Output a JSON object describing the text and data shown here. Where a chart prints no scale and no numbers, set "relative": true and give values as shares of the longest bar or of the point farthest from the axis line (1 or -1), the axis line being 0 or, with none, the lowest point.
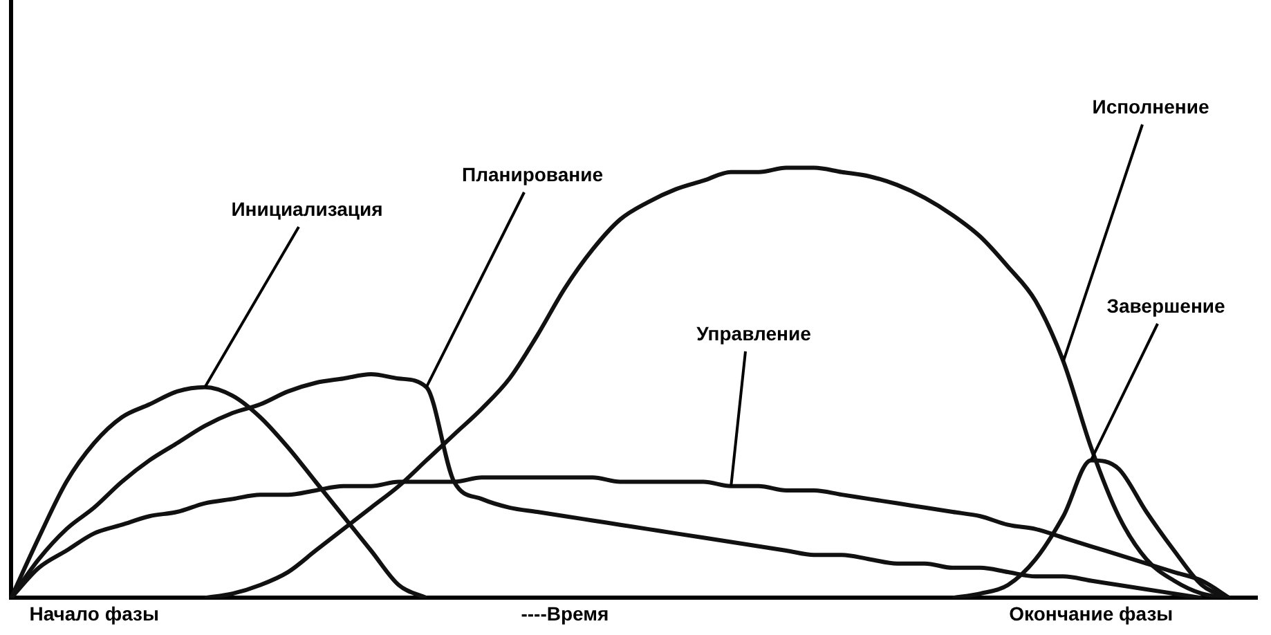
{
  "chart_data": {
    "type": "line",
    "relative": true,
    "grid": false,
    "legend": false,
    "marker": "none",
    "line_style": "solid",
    "categories": [
      null,
      null,
      null,
      "Начало фазы",
      null,
      null,
      null,
      null,
      null,
      null,
      null,
      null,
      null,
      null,
      null,
      null,
      null,
      null,
      null,
      null,
      "----Время",
      null,
      null,
      null,
      null,
      null,
      null,
      null,
      null,
      null,
      null,
      null,
      null,
      null,
      null,
      null,
      null,
      null,
      null,
      "Окончание фазы",
      null,
      null,
      null,
      null,
      null,
      null
    ],
    "series": [
      {
        "name": "Инициализация",
        "color": "#111111",
        "values": [
          0,
          0.14,
          0.27,
          0.36,
          0.42,
          0.45,
          0.48,
          0.49,
          0.47,
          0.42,
          0.35,
          0.27,
          0.19,
          0.11,
          0.03,
          0,
          null,
          null,
          null,
          null,
          null,
          null,
          null,
          null,
          null,
          null,
          null,
          null,
          null,
          null,
          null,
          null,
          null,
          null,
          null,
          null,
          null,
          null,
          null,
          null,
          null,
          null,
          null,
          null,
          null,
          null
        ]
      },
      {
        "name": "Планирование",
        "color": "#111111",
        "values": [
          0,
          0.09,
          0.16,
          0.21,
          0.27,
          0.32,
          0.36,
          0.4,
          0.43,
          0.45,
          0.48,
          0.5,
          0.51,
          0.52,
          0.51,
          0.49,
          0.27,
          0.23,
          0.21,
          0.2,
          0.19,
          0.18,
          0.17,
          0.16,
          0.15,
          0.14,
          0.13,
          0.12,
          0.11,
          0.1,
          0.1,
          0.09,
          0.08,
          0.08,
          0.07,
          0.07,
          0.06,
          0.05,
          0.05,
          0.04,
          0.03,
          0.02,
          0.01,
          0,
          null,
          null
        ]
      },
      {
        "name": "Исполнение",
        "color": "#111111",
        "values": [
          null,
          null,
          null,
          null,
          null,
          null,
          null,
          0,
          0.01,
          0.03,
          0.06,
          0.11,
          0.16,
          0.21,
          0.26,
          0.32,
          0.38,
          0.44,
          0.51,
          0.61,
          0.72,
          0.81,
          0.88,
          0.92,
          0.95,
          0.97,
          0.99,
          0.99,
          1,
          1,
          0.99,
          0.98,
          0.96,
          0.93,
          0.89,
          0.84,
          0.77,
          0.69,
          0.55,
          0.35,
          0.19,
          0.09,
          0.04,
          0.01,
          0,
          null
        ]
      },
      {
        "name": "Управление",
        "color": "#111111",
        "values": [
          0,
          0.07,
          0.11,
          0.15,
          0.17,
          0.19,
          0.2,
          0.22,
          0.23,
          0.24,
          0.24,
          0.25,
          0.26,
          0.26,
          0.27,
          0.27,
          0.27,
          0.28,
          0.28,
          0.28,
          0.28,
          0.28,
          0.27,
          0.27,
          0.27,
          0.27,
          0.26,
          0.26,
          0.25,
          0.25,
          0.24,
          0.23,
          0.22,
          0.21,
          0.2,
          0.19,
          0.17,
          0.16,
          0.14,
          0.12,
          0.1,
          0.08,
          0.06,
          0.04,
          0,
          null
        ]
      },
      {
        "name": "Завершение",
        "color": "#111111",
        "values": [
          null,
          null,
          null,
          null,
          null,
          null,
          null,
          null,
          null,
          null,
          null,
          null,
          null,
          null,
          null,
          null,
          null,
          null,
          null,
          null,
          null,
          null,
          null,
          null,
          null,
          null,
          null,
          null,
          null,
          null,
          null,
          null,
          null,
          null,
          0,
          0.01,
          0.03,
          0.09,
          0.19,
          0.32,
          0.3,
          0.2,
          0.11,
          0.03,
          0,
          null
        ]
      }
    ]
  }
}
